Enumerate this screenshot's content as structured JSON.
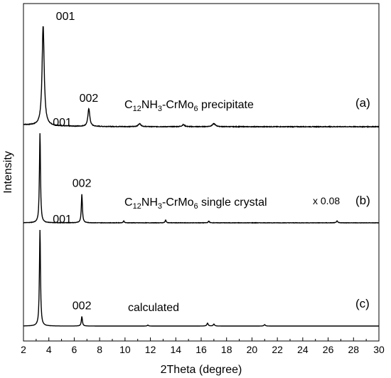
{
  "chart_data": {
    "type": "line",
    "xlabel": "2Theta (degree)",
    "ylabel": "Intensity",
    "xlim": [
      2,
      30
    ],
    "x_ticks": [
      "2",
      "4",
      "6",
      "8",
      "10",
      "12",
      "14",
      "16",
      "18",
      "20",
      "22",
      "24",
      "26",
      "28",
      "30"
    ],
    "grid": false,
    "series": [
      {
        "id": "a",
        "tag": "(a)",
        "label_main": "C",
        "label_sub1": "12",
        "label_mid": "NH",
        "label_sub2": "3",
        "label_mid2": "-CrMo",
        "label_sub3": "6",
        "label_tail": " precipitate",
        "baseline": 0.02,
        "noise": 0.006,
        "peaks": [
          {
            "x": 3.55,
            "y": 1.0,
            "w": 0.1,
            "label": "001"
          },
          {
            "x": 7.15,
            "y": 0.18,
            "w": 0.09,
            "label": "002"
          },
          {
            "x": 11.15,
            "y": 0.03,
            "w": 0.12
          },
          {
            "x": 14.6,
            "y": 0.02,
            "w": 0.12
          },
          {
            "x": 17.0,
            "y": 0.03,
            "w": 0.15
          }
        ]
      },
      {
        "id": "b",
        "tag": "(b)",
        "scale_note": "x 0.08",
        "label_main": "C",
        "label_sub1": "12",
        "label_mid": "NH",
        "label_sub2": "3",
        "label_mid2": "-CrMo",
        "label_sub3": "6",
        "label_tail": " single crystal",
        "baseline": 0.0,
        "noise": 0.004,
        "peaks": [
          {
            "x": 3.3,
            "y": 1.0,
            "w": 0.05,
            "label": "001"
          },
          {
            "x": 6.6,
            "y": 0.32,
            "w": 0.05,
            "label": "002"
          },
          {
            "x": 9.9,
            "y": 0.02,
            "w": 0.05
          },
          {
            "x": 13.2,
            "y": 0.03,
            "w": 0.05
          },
          {
            "x": 16.6,
            "y": 0.02,
            "w": 0.05
          },
          {
            "x": 26.7,
            "y": 0.02,
            "w": 0.06
          }
        ]
      },
      {
        "id": "c",
        "tag": "(c)",
        "label_main": "calculated",
        "baseline": 0.0,
        "noise": 0.0,
        "peaks": [
          {
            "x": 3.3,
            "y": 1.0,
            "w": 0.05,
            "label": "001"
          },
          {
            "x": 6.6,
            "y": 0.1,
            "w": 0.05,
            "label": "002"
          },
          {
            "x": 11.8,
            "y": 0.01,
            "w": 0.05
          },
          {
            "x": 16.5,
            "y": 0.03,
            "w": 0.06
          },
          {
            "x": 17.0,
            "y": 0.02,
            "w": 0.06
          },
          {
            "x": 21.0,
            "y": 0.015,
            "w": 0.06
          }
        ]
      }
    ]
  }
}
